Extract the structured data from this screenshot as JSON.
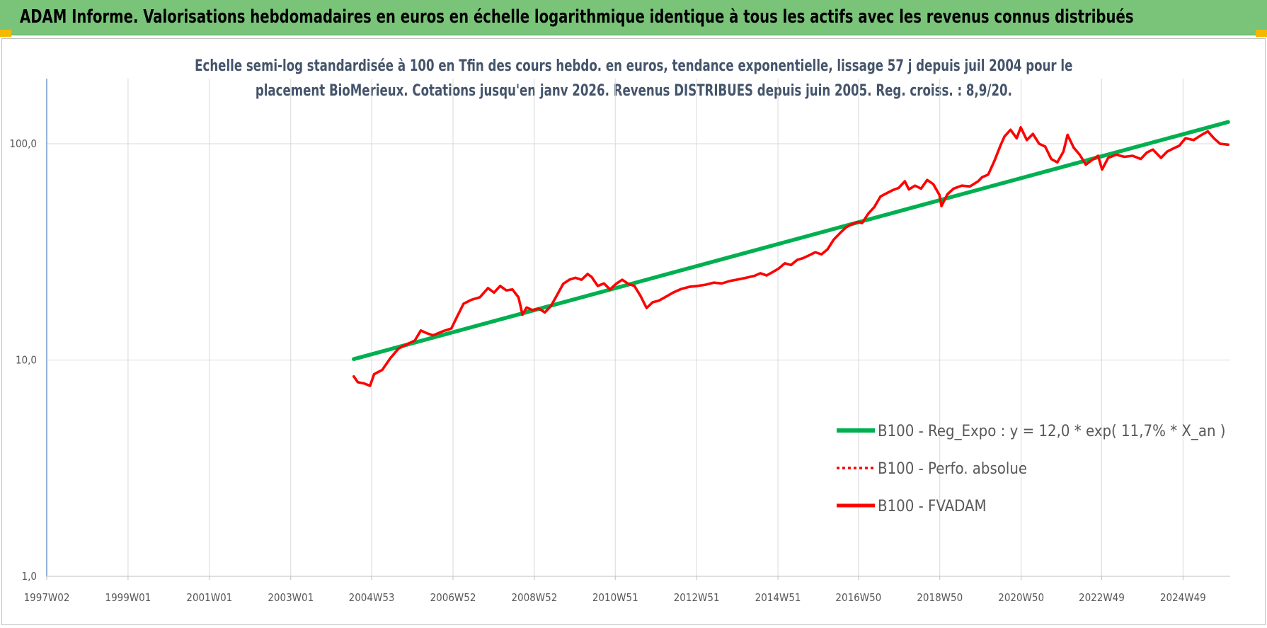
{
  "banner": {
    "title": "ADAM Informe. Valorisations hebdomadaires en euros en échelle logarithmique identique à tous les actifs avec les revenus connus distribués"
  },
  "colors": {
    "banner": "#7ac47a",
    "trend": "#00b050",
    "perf": "#ff0000",
    "fvadam": "#ff0000",
    "axis": "#4f81bd",
    "grid": "#d9d9d9",
    "text": "#44546a"
  },
  "chart_data": {
    "type": "line",
    "title_line1": "Echelle semi-log standardisée à 100 en Tfin des cours hebdo. en euros, tendance exponentielle, lissage 57 j depuis juil 2004 pour le",
    "title_line2": "placement BioMerieux. Cotations jusqu'en janv 2026. Revenus DISTRIBUES depuis juin 2005. Reg. croiss. : 8,9/20.",
    "y_scale": "log",
    "ylim": [
      1,
      200
    ],
    "y_ticks": [
      {
        "value": 1,
        "label": "1,0"
      },
      {
        "value": 10,
        "label": "10,0"
      },
      {
        "value": 100,
        "label": "100,0"
      }
    ],
    "x_range": [
      1997.0,
      2026.1
    ],
    "x_ticks": [
      {
        "year": 1997.0,
        "label": "1997W02"
      },
      {
        "year": 1999.0,
        "label": "1999W01"
      },
      {
        "year": 2001.0,
        "label": "2001W01"
      },
      {
        "year": 2003.0,
        "label": "2003W01"
      },
      {
        "year": 2004.99,
        "label": "2004W53"
      },
      {
        "year": 2006.99,
        "label": "2006W52"
      },
      {
        "year": 2008.99,
        "label": "2008W52"
      },
      {
        "year": 2010.98,
        "label": "2010W51"
      },
      {
        "year": 2012.98,
        "label": "2012W51"
      },
      {
        "year": 2014.98,
        "label": "2014W51"
      },
      {
        "year": 2016.96,
        "label": "2016W50"
      },
      {
        "year": 2018.96,
        "label": "2018W50"
      },
      {
        "year": 2020.96,
        "label": "2020W50"
      },
      {
        "year": 2022.94,
        "label": "2022W49"
      },
      {
        "year": 2024.94,
        "label": "2024W49"
      }
    ],
    "grid": true,
    "legend_position": "right-lower",
    "series": [
      {
        "name": "B100 - Reg_Expo : y = 12,0 * exp( 11,7% *  X_an )",
        "style": "solid-thick",
        "color": "#00b050",
        "points": [
          [
            2004.55,
            10.1
          ],
          [
            2026.05,
            126
          ]
        ]
      },
      {
        "name": "B100 - Perfo. absolue",
        "style": "dotted",
        "color": "#ff0000",
        "points": []
      },
      {
        "name": "B100 - FVADAM",
        "style": "solid",
        "color": "#ff0000",
        "points": [
          [
            2004.55,
            8.4
          ],
          [
            2004.65,
            7.9
          ],
          [
            2004.8,
            7.8
          ],
          [
            2004.95,
            7.6
          ],
          [
            2005.05,
            8.6
          ],
          [
            2005.25,
            9.0
          ],
          [
            2005.45,
            10.2
          ],
          [
            2005.65,
            11.3
          ],
          [
            2005.85,
            11.8
          ],
          [
            2006.05,
            12.3
          ],
          [
            2006.2,
            13.7
          ],
          [
            2006.35,
            13.3
          ],
          [
            2006.5,
            13.0
          ],
          [
            2006.75,
            13.6
          ],
          [
            2006.95,
            14.0
          ],
          [
            2007.1,
            16.0
          ],
          [
            2007.25,
            18.2
          ],
          [
            2007.45,
            19.0
          ],
          [
            2007.65,
            19.5
          ],
          [
            2007.85,
            21.5
          ],
          [
            2008.0,
            20.5
          ],
          [
            2008.15,
            22.0
          ],
          [
            2008.3,
            21.0
          ],
          [
            2008.45,
            21.2
          ],
          [
            2008.6,
            19.5
          ],
          [
            2008.7,
            16.2
          ],
          [
            2008.8,
            17.5
          ],
          [
            2008.95,
            17.0
          ],
          [
            2009.1,
            17.3
          ],
          [
            2009.25,
            16.6
          ],
          [
            2009.4,
            17.8
          ],
          [
            2009.55,
            20.0
          ],
          [
            2009.7,
            22.5
          ],
          [
            2009.85,
            23.5
          ],
          [
            2010.0,
            24.0
          ],
          [
            2010.15,
            23.5
          ],
          [
            2010.3,
            25.0
          ],
          [
            2010.4,
            24.2
          ],
          [
            2010.55,
            22.0
          ],
          [
            2010.7,
            22.6
          ],
          [
            2010.85,
            21.2
          ],
          [
            2011.0,
            22.5
          ],
          [
            2011.15,
            23.5
          ],
          [
            2011.3,
            22.5
          ],
          [
            2011.45,
            22.0
          ],
          [
            2011.6,
            19.8
          ],
          [
            2011.75,
            17.4
          ],
          [
            2011.9,
            18.5
          ],
          [
            2012.05,
            18.8
          ],
          [
            2012.2,
            19.5
          ],
          [
            2012.4,
            20.5
          ],
          [
            2012.6,
            21.3
          ],
          [
            2012.8,
            21.8
          ],
          [
            2013.0,
            22.0
          ],
          [
            2013.2,
            22.3
          ],
          [
            2013.4,
            22.8
          ],
          [
            2013.6,
            22.6
          ],
          [
            2013.8,
            23.2
          ],
          [
            2014.0,
            23.6
          ],
          [
            2014.2,
            24.0
          ],
          [
            2014.4,
            24.5
          ],
          [
            2014.55,
            25.2
          ],
          [
            2014.7,
            24.6
          ],
          [
            2014.85,
            25.5
          ],
          [
            2015.0,
            26.5
          ],
          [
            2015.15,
            28.0
          ],
          [
            2015.3,
            27.5
          ],
          [
            2015.45,
            29.0
          ],
          [
            2015.6,
            29.6
          ],
          [
            2015.75,
            30.5
          ],
          [
            2015.9,
            31.5
          ],
          [
            2016.05,
            30.8
          ],
          [
            2016.2,
            32.5
          ],
          [
            2016.35,
            36.0
          ],
          [
            2016.5,
            38.5
          ],
          [
            2016.65,
            41.0
          ],
          [
            2016.8,
            42.5
          ],
          [
            2016.95,
            43.5
          ],
          [
            2017.05,
            43.0
          ],
          [
            2017.2,
            47.5
          ],
          [
            2017.35,
            51.0
          ],
          [
            2017.5,
            57.0
          ],
          [
            2017.65,
            59.0
          ],
          [
            2017.8,
            61.0
          ],
          [
            2017.95,
            62.5
          ],
          [
            2018.1,
            67.0
          ],
          [
            2018.2,
            61.5
          ],
          [
            2018.35,
            64.0
          ],
          [
            2018.5,
            62.0
          ],
          [
            2018.65,
            68.0
          ],
          [
            2018.8,
            65.0
          ],
          [
            2018.95,
            58.0
          ],
          [
            2019.0,
            51.5
          ],
          [
            2019.15,
            58.5
          ],
          [
            2019.3,
            62.0
          ],
          [
            2019.5,
            64.0
          ],
          [
            2019.7,
            63.5
          ],
          [
            2019.9,
            67.0
          ],
          [
            2020.0,
            70.0
          ],
          [
            2020.15,
            72.0
          ],
          [
            2020.3,
            83.0
          ],
          [
            2020.45,
            98.0
          ],
          [
            2020.55,
            108.0
          ],
          [
            2020.7,
            116.0
          ],
          [
            2020.85,
            106.0
          ],
          [
            2020.95,
            119.0
          ],
          [
            2021.1,
            104.0
          ],
          [
            2021.25,
            111.0
          ],
          [
            2021.4,
            100.0
          ],
          [
            2021.55,
            97.0
          ],
          [
            2021.7,
            85.0
          ],
          [
            2021.85,
            82.0
          ],
          [
            2022.0,
            92.0
          ],
          [
            2022.1,
            110.0
          ],
          [
            2022.25,
            96.0
          ],
          [
            2022.4,
            89.0
          ],
          [
            2022.55,
            80.0
          ],
          [
            2022.7,
            84.0
          ],
          [
            2022.85,
            88.0
          ],
          [
            2022.95,
            76.0
          ],
          [
            2023.1,
            86.0
          ],
          [
            2023.3,
            89.0
          ],
          [
            2023.5,
            87.0
          ],
          [
            2023.7,
            88.0
          ],
          [
            2023.9,
            85.0
          ],
          [
            2024.05,
            91.0
          ],
          [
            2024.2,
            94.0
          ],
          [
            2024.4,
            86.0
          ],
          [
            2024.55,
            92.0
          ],
          [
            2024.7,
            95.0
          ],
          [
            2024.85,
            98.0
          ],
          [
            2025.0,
            106.0
          ],
          [
            2025.2,
            104.0
          ],
          [
            2025.4,
            110.0
          ],
          [
            2025.55,
            114.0
          ],
          [
            2025.7,
            106.0
          ],
          [
            2025.85,
            100.0
          ],
          [
            2026.05,
            99.0
          ]
        ]
      }
    ]
  }
}
